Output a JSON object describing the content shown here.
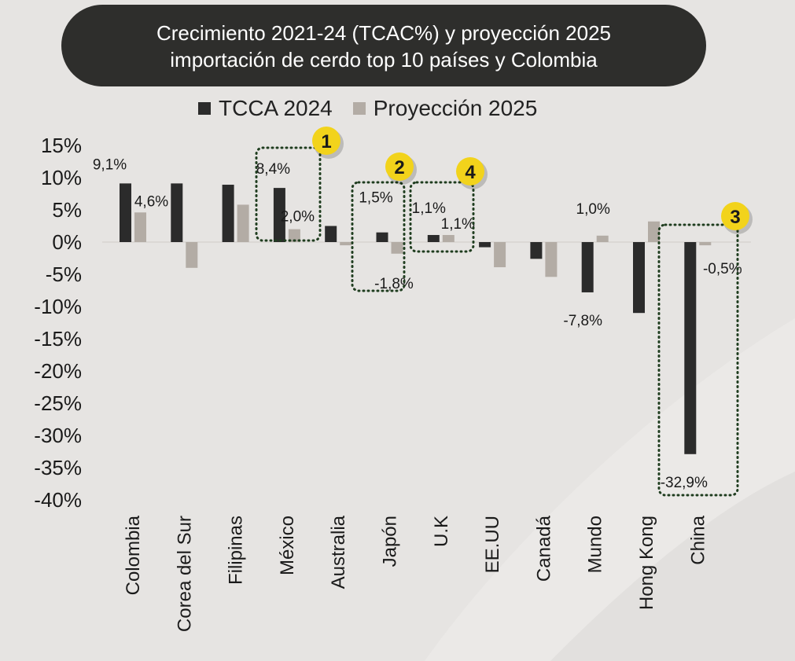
{
  "header": {
    "title_line1": "Crecimiento 2021-24 (TCAC%) y proyección 2025",
    "title_line2": "importación de cerdo top 10 países y Colombia"
  },
  "chart_data": {
    "type": "bar",
    "title": "Crecimiento 2021-24 (TCAC%) y proyección 2025 importación de cerdo top 10 países y Colombia",
    "categories": [
      "Colombia",
      "Corea del Sur",
      "Filipinas",
      "México",
      "Australia",
      "Japón",
      "U.K",
      "EE.UU",
      "Canadá",
      "Mundo",
      "Hong Kong",
      "China"
    ],
    "series": [
      {
        "name": "TCCA 2024",
        "color": "#2b2b2b",
        "values": [
          9.1,
          9.1,
          8.9,
          8.4,
          2.5,
          1.5,
          1.1,
          -0.8,
          -2.6,
          -7.8,
          -11.0,
          -32.9
        ]
      },
      {
        "name": "Proyección 2025",
        "color": "#b3aca5",
        "values": [
          4.6,
          -4.0,
          5.8,
          2.0,
          -0.5,
          -1.8,
          1.1,
          -3.9,
          -5.4,
          1.0,
          3.2,
          -0.5
        ]
      }
    ],
    "data_labels": [
      {
        "category": "Colombia",
        "series": 0,
        "text": "9,1%"
      },
      {
        "category": "Colombia",
        "series": 1,
        "text": "4,6%"
      },
      {
        "category": "México",
        "series": 0,
        "text": "8,4%"
      },
      {
        "category": "México",
        "series": 1,
        "text": "2,0%"
      },
      {
        "category": "Japón",
        "series": 0,
        "text": "1,5%"
      },
      {
        "category": "Japón",
        "series": 1,
        "text": "-1,8%"
      },
      {
        "category": "U.K",
        "series": 0,
        "text": "1,1%"
      },
      {
        "category": "U.K",
        "series": 1,
        "text": "1,1%"
      },
      {
        "category": "Mundo",
        "series": 0,
        "text": "-7,8%"
      },
      {
        "category": "Mundo",
        "series": 1,
        "text": "1,0%"
      },
      {
        "category": "China",
        "series": 0,
        "text": "-32,9%"
      },
      {
        "category": "China",
        "series": 1,
        "text": "-0,5%"
      }
    ],
    "y_ticks": [
      "15%",
      "10%",
      "5%",
      "0%",
      "-5%",
      "-10%",
      "-15%",
      "-20%",
      "-25%",
      "-30%",
      "-35%",
      "-40%"
    ],
    "ylim": [
      -40,
      15
    ],
    "grid": false,
    "legend_position": "top",
    "highlights": [
      {
        "number": "1",
        "categories": [
          "México"
        ]
      },
      {
        "number": "2",
        "categories": [
          "Japón"
        ]
      },
      {
        "number": "3",
        "categories": [
          "China"
        ]
      },
      {
        "number": "4",
        "categories": [
          "U.K"
        ]
      }
    ],
    "highlight_color": "#f2d31b"
  }
}
